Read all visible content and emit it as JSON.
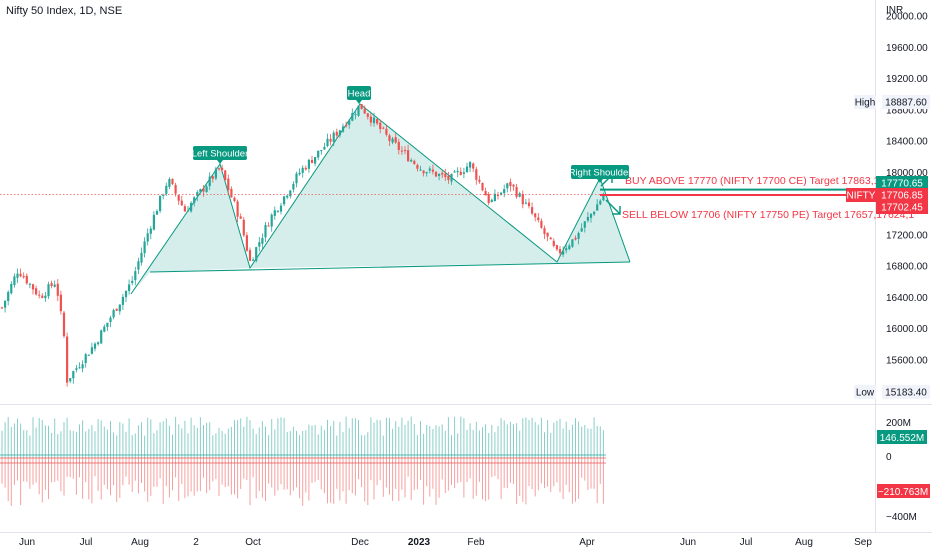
{
  "header": {
    "title": "Nifty 50 Index, 1D, NSE",
    "currency": "INR"
  },
  "price_axis": {
    "ticks": [
      "20000.00",
      "19600.00",
      "19200.00",
      "18800.00",
      "18400.00",
      "18000.00",
      "17600.00",
      "17200.00",
      "16800.00",
      "16400.00",
      "16000.00",
      "15600.00",
      "15200.00"
    ],
    "badges": {
      "high_label": "High",
      "high_value": "18887.60",
      "low_label": "Low",
      "low_value": "15183.40",
      "buy_level": "17770.65",
      "symbol": "NIFTY",
      "last": "17706.85",
      "sell_level": "17702.45"
    }
  },
  "volume_axis": {
    "ticks": [
      "200M",
      "0",
      "−400M"
    ],
    "pos_badge": "146.552M",
    "neg_badge": "−210.763M"
  },
  "time_axis": {
    "ticks": [
      "Jun",
      "Jul",
      "Aug",
      "2",
      "Oct",
      "Dec",
      "2023",
      "Feb",
      "Apr",
      "Jun",
      "Jul",
      "Aug",
      "Sep"
    ]
  },
  "annotations": {
    "left_shoulder": "Left Shoulder",
    "head": "Head",
    "right_shoulder": "Right Shoulder",
    "buy_text": "BUY ABOVE 17770 (NIFTY 17700 CE) Target 17863,17990",
    "sell_text": "SELL BELOW 17706 (NIFTY 17750 PE) Target 17657,17624,1"
  },
  "colors": {
    "up": "#26a69a",
    "down": "#ef5350",
    "pattern_fill": "#b2dfdb",
    "pattern_line": "#089981",
    "buy_line": "#089981",
    "sell_line": "#f23645",
    "annotation_text": "#f23645",
    "axis_text": "#131722"
  },
  "chart_data": {
    "type": "candlestick",
    "symbol": "NIFTY",
    "timeframe": "1D",
    "ylim": [
      15100,
      20150
    ],
    "high": 18887.6,
    "low": 15183.4,
    "last": 17706.85,
    "levels": {
      "buy_above": 17770.65,
      "sell_below": 17702.45
    },
    "anchor_points": [
      {
        "x": "May 2022",
        "y": 16200
      },
      {
        "x": "May 2022",
        "y": 16700
      },
      {
        "x": "May 2022",
        "y": 16400
      },
      {
        "x": "Jun 2022",
        "y": 16600
      },
      {
        "x": "Jun 2022",
        "y": 15800
      },
      {
        "x": "Jun 2022",
        "y": 15250
      },
      {
        "x": "Jul 2022",
        "y": 15800
      },
      {
        "x": "Jul 2022",
        "y": 16300
      },
      {
        "x": "Jul 2022",
        "y": 16600
      },
      {
        "x": "Aug 2022",
        "y": 17300
      },
      {
        "x": "Aug 2022",
        "y": 17900
      },
      {
        "x": "Aug 2022",
        "y": 17500
      },
      {
        "x": "Sep 2022",
        "y": 18050
      },
      {
        "x": "Sep 2022",
        "y": 17400
      },
      {
        "x": "Oct 2022",
        "y": 16900
      },
      {
        "x": "Oct 2022",
        "y": 17400
      },
      {
        "x": "Nov 2022",
        "y": 18000
      },
      {
        "x": "Nov 2022",
        "y": 18400
      },
      {
        "x": "Dec 2022",
        "y": 18850
      },
      {
        "x": "Dec 2022",
        "y": 18400
      },
      {
        "x": "Dec 2022",
        "y": 18050
      },
      {
        "x": "Jan 2023",
        "y": 17900
      },
      {
        "x": "Jan 2023",
        "y": 18100
      },
      {
        "x": "Jan 2023",
        "y": 17600
      },
      {
        "x": "Feb 2023",
        "y": 17850
      },
      {
        "x": "Feb 2023",
        "y": 17500
      },
      {
        "x": "Mar 2023",
        "y": 17000
      },
      {
        "x": "Mar 2023",
        "y": 17150
      },
      {
        "x": "Apr 2023",
        "y": 17700
      }
    ],
    "pattern": {
      "name": "Head and Shoulders",
      "points": [
        "Left Shoulder",
        "Head",
        "Right Shoulder"
      ]
    },
    "volume": {
      "last_pos": "146.552M",
      "last_neg": "−210.763M"
    }
  }
}
